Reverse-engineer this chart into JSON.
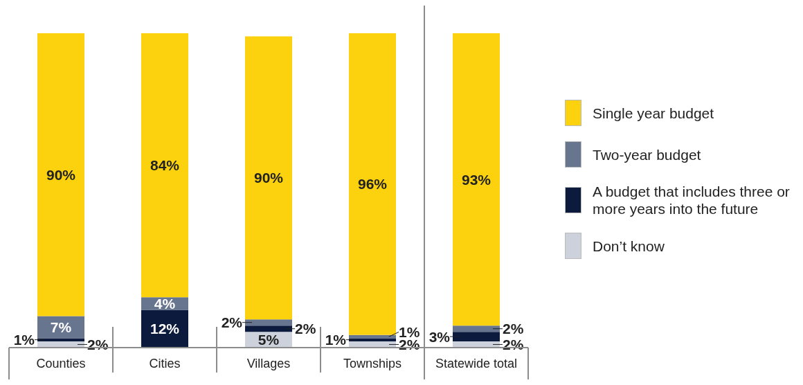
{
  "chart_data": {
    "type": "bar",
    "stacked": true,
    "categories": [
      "Counties",
      "Cities",
      "Villages",
      "Townships",
      "Statewide total"
    ],
    "series": [
      {
        "name": "Don’t know",
        "color": "#cdd1db",
        "values": [
          2,
          0,
          5,
          2,
          2
        ],
        "value_labels": [
          "2%",
          null,
          "5%",
          "2%",
          "2%"
        ]
      },
      {
        "name": "A budget that includes three or more years into the future",
        "color": "#0b1a3d",
        "values": [
          1,
          12,
          2,
          1,
          3
        ],
        "value_labels": [
          "1%",
          "12%",
          "2%",
          "1%",
          "3%"
        ]
      },
      {
        "name": "Two-year budget",
        "color": "#68758f",
        "values": [
          7,
          4,
          2,
          1,
          2
        ],
        "value_labels": [
          "7%",
          "4%",
          "2%",
          "1%",
          "2%"
        ]
      },
      {
        "name": "Single year budget",
        "color": "#fcd20f",
        "values": [
          90,
          84,
          90,
          96,
          93
        ],
        "value_labels": [
          "90%",
          "84%",
          "90%",
          "96%",
          "93%"
        ]
      }
    ],
    "legend": "right",
    "grid": false
  }
}
